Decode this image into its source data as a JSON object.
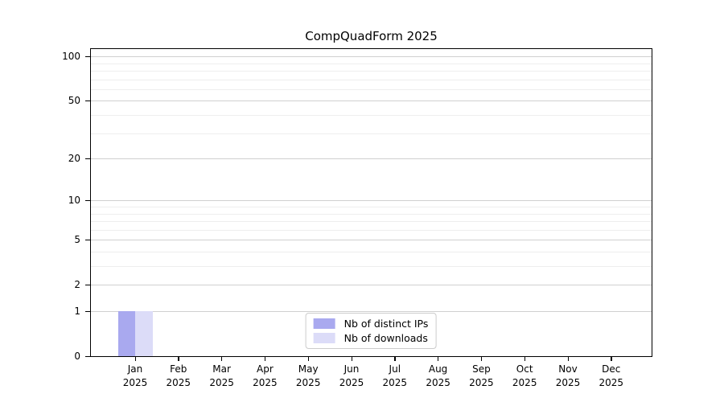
{
  "chart_data": {
    "type": "bar",
    "title": "CompQuadForm 2025",
    "categories": [
      {
        "month": "Jan",
        "year": "2025"
      },
      {
        "month": "Feb",
        "year": "2025"
      },
      {
        "month": "Mar",
        "year": "2025"
      },
      {
        "month": "Apr",
        "year": "2025"
      },
      {
        "month": "May",
        "year": "2025"
      },
      {
        "month": "Jun",
        "year": "2025"
      },
      {
        "month": "Jul",
        "year": "2025"
      },
      {
        "month": "Aug",
        "year": "2025"
      },
      {
        "month": "Sep",
        "year": "2025"
      },
      {
        "month": "Oct",
        "year": "2025"
      },
      {
        "month": "Nov",
        "year": "2025"
      },
      {
        "month": "Dec",
        "year": "2025"
      }
    ],
    "series": [
      {
        "name": "Nb of distinct IPs",
        "color": "#a9a9ef",
        "values": [
          1,
          0,
          0,
          0,
          0,
          0,
          0,
          0,
          0,
          0,
          0,
          0
        ]
      },
      {
        "name": "Nb of downloads",
        "color": "#dcdcf8",
        "values": [
          1,
          0,
          0,
          0,
          0,
          0,
          0,
          0,
          0,
          0,
          0,
          0
        ]
      }
    ],
    "xlabel": "",
    "ylabel": "",
    "yscale": "log1p",
    "ylim": [
      0,
      113
    ],
    "yticks_major": [
      0,
      1,
      2,
      5,
      10,
      20,
      50,
      100
    ],
    "yticks_minor": [
      3,
      4,
      6,
      7,
      8,
      9,
      30,
      40,
      60,
      70,
      80,
      90
    ],
    "grid": "horizontal",
    "legend_position": "lower-center",
    "colors": {
      "grid_major": "#d0d0d0",
      "grid_minor": "#eeeeee",
      "axis": "#000000",
      "background": "#ffffff"
    }
  }
}
